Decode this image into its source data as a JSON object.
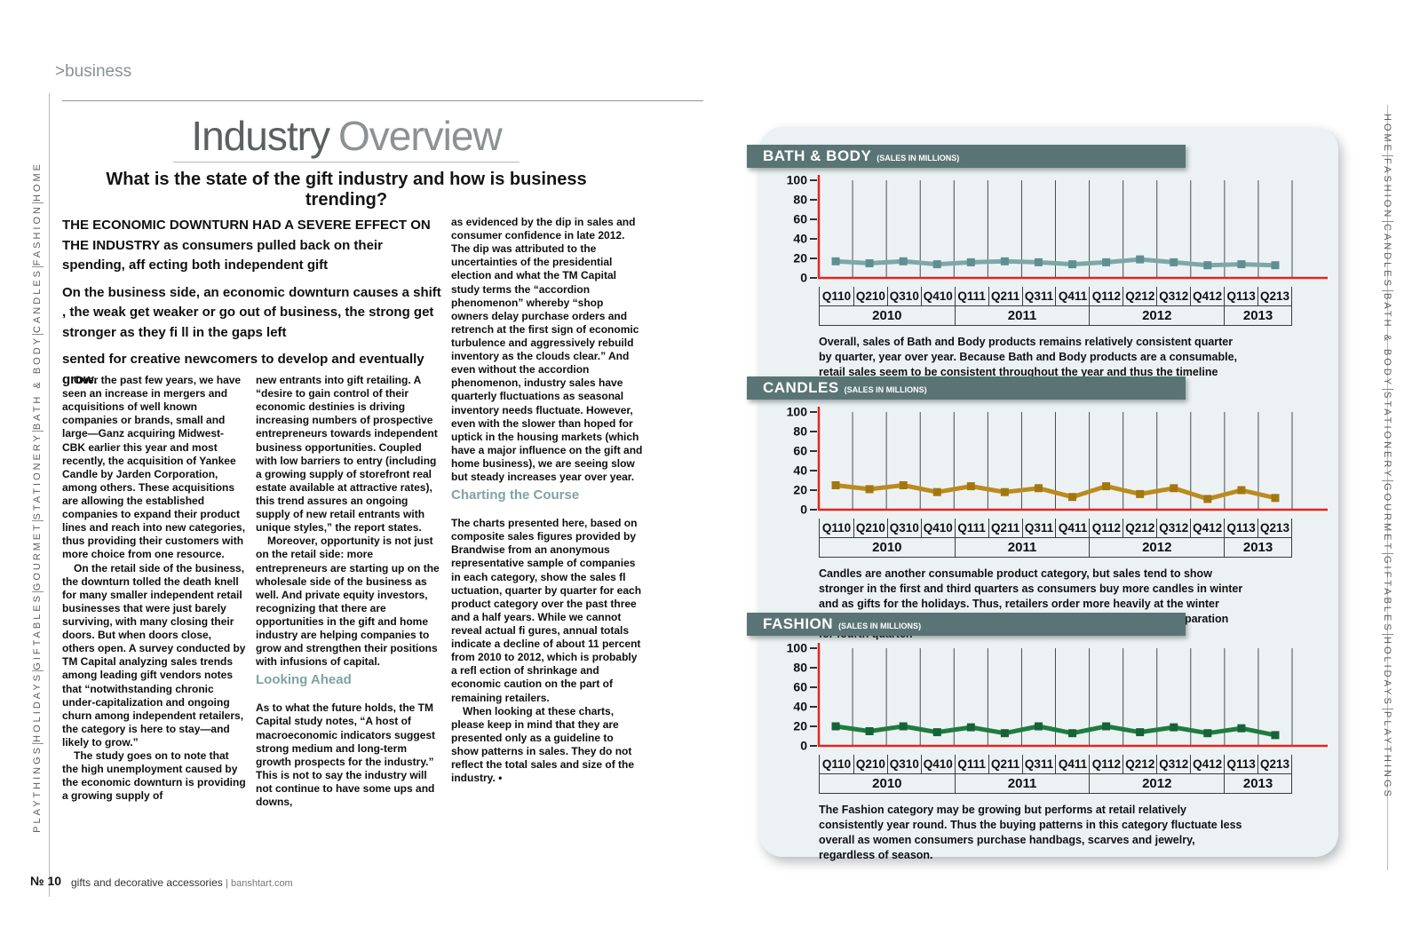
{
  "page": {
    "kicker": ">business",
    "title": {
      "word1": "Industry",
      "word2": "Overview"
    },
    "subtitle": "What is the state of the gift industry and how is business trending?",
    "footer": {
      "issue": "№ 10",
      "tagline": "gifts and decorative accessories",
      "url": "| banshtart.com"
    }
  },
  "rails": {
    "items": [
      "HOME",
      "FASHION",
      "CANDLES",
      "BATH & BODY",
      "STATIONERY",
      "GOURMET",
      "GIFTABLES",
      "HOLIDAYS",
      "PLAYTHINGS"
    ]
  },
  "article": {
    "lede": [
      "THE ECONOMIC DOWNTURN HAD A SEVERE EFFECT ON THE INDUSTRY as consumers pulled back on their spending, aff ecting both independent gift",
      "On the business side, an economic downturn causes a shift , the weak get weaker or go out of business, the strong get stronger as they fi ll in the gaps left",
      "sented for creative newcomers to develop and eventually grow."
    ],
    "columns": [
      [
        {
          "t": "p",
          "ind": true,
          "text": "Over the past few years, we have seen an increase in mergers and acquisitions of well known companies or brands, small and large—Ganz acquiring Midwest-CBK earlier this year and most recently, the acquisition of Yankee Candle by Jarden Corporation, among others. These acquisitions are allowing the established companies to expand their product lines and reach into new categories, thus providing their customers with more choice from one resource."
        },
        {
          "t": "p",
          "ind": true,
          "text": "On the retail side of the business, the downturn tolled the death knell for many smaller independent retail businesses that were just barely surviving, with many closing their doors. But when doors close, others open. A survey conducted by TM Capital analyzing sales trends among leading gift vendors notes that “notwithstanding chronic under-capitalization and ongoing churn among independent retailers, the category is here to stay—and likely to grow.”"
        },
        {
          "t": "p",
          "ind": true,
          "text": "The study goes on to note that the high unemployment caused by the economic downturn is providing a growing supply of"
        }
      ],
      [
        {
          "t": "p",
          "ind": false,
          "text": "new entrants into gift retailing. A “desire to gain control of their economic destinies is driving increasing numbers of prospective entrepreneurs towards independent business opportunities. Coupled with low barriers to entry (including a growing supply of storefront real estate available at attractive rates), this trend assures an ongoing supply of new retail entrants with unique styles,” the report states."
        },
        {
          "t": "p",
          "ind": true,
          "text": "Moreover, opportunity is not just on the retail side: more entrepreneurs are starting up on the wholesale side of the business as well. And private equity investors, recognizing that there are opportunities in the gift and home industry are helping companies to grow and strengthen their positions with infusions of capital."
        },
        {
          "t": "h",
          "text": "Looking Ahead"
        },
        {
          "t": "p",
          "ind": false,
          "text": "As to what the future holds, the TM Capital study notes, “A host of macroeconomic indicators suggest strong medium and long-term growth prospects for the industry.” This is not to say the industry will not continue to have some ups and downs,"
        }
      ],
      [
        {
          "t": "p",
          "ind": false,
          "text": "as evidenced by the dip in sales and consumer confidence in late 2012. The dip was attributed to the uncertainties of the presidential election and what the TM Capital study terms the “accordion phenomenon” whereby “shop owners delay purchase orders and retrench at the first sign of economic turbulence and aggressively rebuild inventory as the clouds clear.” And even without the accordion phenomenon, industry sales have quarterly fluctuations as seasonal inventory needs fluctuate. However, even with the slower than hoped for uptick in the housing markets (which have a major influence on the gift and home business), we are seeing slow but steady increases year over year."
        },
        {
          "t": "h",
          "text": "Charting the Course"
        },
        {
          "t": "p",
          "ind": false,
          "text": "The charts presented here, based on composite sales figures provided by Brandwise from an anonymous representative sample of companies in each category, show the sales fl uctuation, quarter by quarter for each product category over the past three and a half years. While we cannot reveal actual fi gures, annual totals indicate a decline of about 11 percent from 2010 to 2012, which is probably a refl ection of shrinkage and economic caution on the part of remaining retailers."
        },
        {
          "t": "p",
          "ind": true,
          "text": "When looking at these charts, please keep in mind that they are presented only as a guideline to show patterns in sales. They do not reflect the total sales and size of the industry.  •"
        }
      ]
    ]
  },
  "theme": {
    "axis_red": "#e2261f",
    "gridline": "#4c4c4c",
    "header_bar": "#5a7475",
    "card_bg": "#ecf2f4",
    "subhead_teal": "#7fa3a4"
  },
  "chart_data": [
    {
      "type": "line",
      "title": "BATH & BODY",
      "units_label": "(SALES IN MILLIONS)",
      "categories": [
        "Q110",
        "Q210",
        "Q310",
        "Q410",
        "Q111",
        "Q211",
        "Q311",
        "Q411",
        "Q112",
        "Q212",
        "Q312",
        "Q412",
        "Q113",
        "Q213"
      ],
      "years": [
        {
          "label": "2010",
          "span": 4
        },
        {
          "label": "2011",
          "span": 4
        },
        {
          "label": "2012",
          "span": 4
        },
        {
          "label": "2013",
          "span": 2
        }
      ],
      "values": [
        17,
        15,
        17,
        14,
        16,
        17,
        16,
        14,
        16,
        19,
        16,
        13,
        14,
        13
      ],
      "ylim": [
        0,
        100
      ],
      "yticks": [
        0,
        20,
        40,
        60,
        80,
        100
      ],
      "line_color": "#7da7a8",
      "marker_color": "#5f8f90",
      "grid": true,
      "legend": "none",
      "caption": "Overall, sales of Bath and Body products remains relatively consistent quarter by quarter, year over year. Because Bath and Body products are a consumable, retail sales seem to be consistent throughout the year and thus the timeline here is almost level, with only slight quarterly fluctuations."
    },
    {
      "type": "line",
      "title": "CANDLES",
      "units_label": "(SALES IN MILLIONS)",
      "categories": [
        "Q110",
        "Q210",
        "Q310",
        "Q410",
        "Q111",
        "Q211",
        "Q311",
        "Q411",
        "Q112",
        "Q212",
        "Q312",
        "Q412",
        "Q113",
        "Q213"
      ],
      "years": [
        {
          "label": "2010",
          "span": 4
        },
        {
          "label": "2011",
          "span": 4
        },
        {
          "label": "2012",
          "span": 4
        },
        {
          "label": "2013",
          "span": 2
        }
      ],
      "values": [
        25,
        21,
        25,
        18,
        24,
        18,
        22,
        13,
        24,
        16,
        22,
        11,
        20,
        12
      ],
      "ylim": [
        0,
        100
      ],
      "yticks": [
        0,
        20,
        40,
        60,
        80,
        100
      ],
      "line_color": "#bb8b1f",
      "marker_color": "#a2770f",
      "grid": true,
      "legend": "none",
      "caption": "Candles are another consumable product category, but sales tend to show stronger in the first and third quarters as consumers buy more candles in winter and as gifts for the holidays. Thus, retailers order more heavily at the winter markets for immediate winter sales and at the summer markets in preparation for fourth quarter."
    },
    {
      "type": "line",
      "title": "FASHION",
      "units_label": "(SALES IN MILLIONS)",
      "categories": [
        "Q110",
        "Q210",
        "Q310",
        "Q410",
        "Q111",
        "Q211",
        "Q311",
        "Q411",
        "Q112",
        "Q212",
        "Q312",
        "Q412",
        "Q113",
        "Q213"
      ],
      "years": [
        {
          "label": "2010",
          "span": 4
        },
        {
          "label": "2011",
          "span": 4
        },
        {
          "label": "2012",
          "span": 4
        },
        {
          "label": "2013",
          "span": 2
        }
      ],
      "values": [
        20,
        15,
        20,
        14,
        19,
        13,
        20,
        13,
        20,
        14,
        19,
        13,
        18,
        11
      ],
      "ylim": [
        0,
        100
      ],
      "yticks": [
        0,
        20,
        40,
        60,
        80,
        100
      ],
      "line_color": "#1e7c3e",
      "marker_color": "#156336",
      "grid": true,
      "legend": "none",
      "caption": "The Fashion category may be growing but performs at retail relatively consistently year round. Thus the buying patterns in this category fluctuate less overall as women consumers purchase handbags, scarves and jewelry, regardless of season."
    }
  ]
}
